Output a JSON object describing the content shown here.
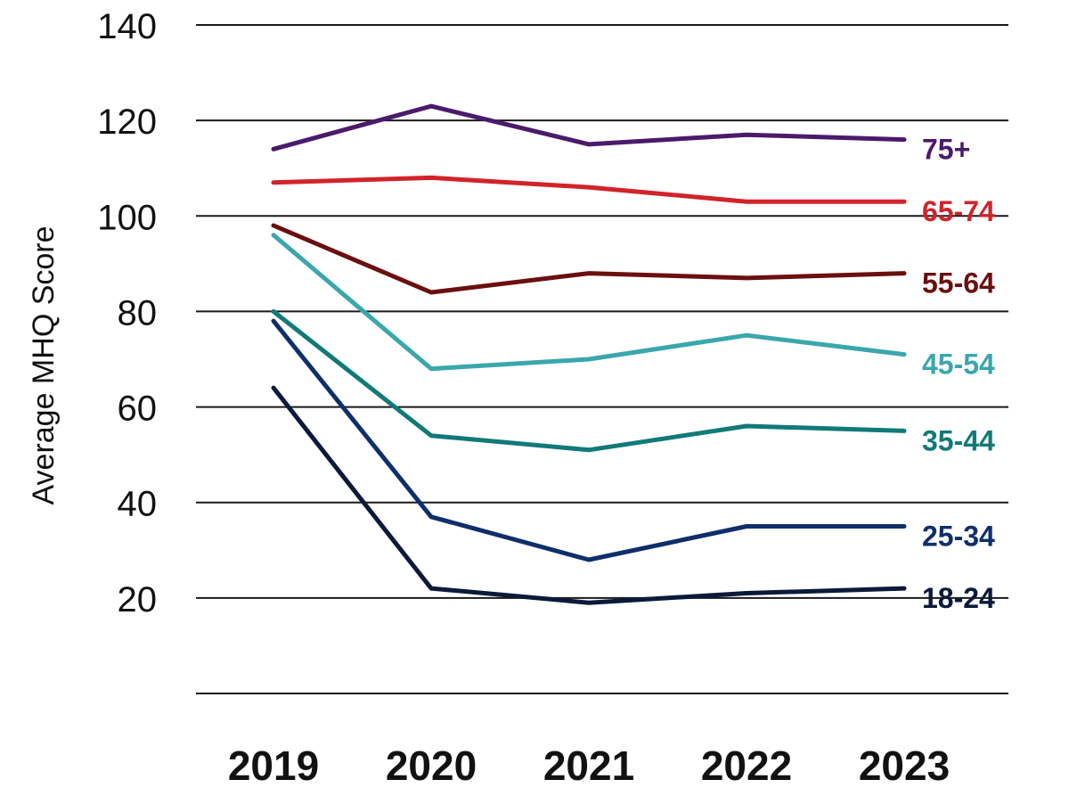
{
  "chart_data": {
    "type": "line",
    "title": "",
    "xlabel": "",
    "ylabel": "Average MHQ Score",
    "x": [
      "2019",
      "2020",
      "2021",
      "2022",
      "2023"
    ],
    "y_ticks": [
      20,
      40,
      60,
      80,
      100,
      120,
      140
    ],
    "ylim": [
      0,
      140
    ],
    "grid": true,
    "legend": "direct labels at line ends",
    "series": [
      {
        "name": "75+",
        "color": "#4b1a6b",
        "values": [
          114,
          123,
          115,
          117,
          116
        ]
      },
      {
        "name": "65-74",
        "color": "#d2232a",
        "values": [
          107,
          108,
          106,
          103,
          103
        ]
      },
      {
        "name": "55-64",
        "color": "#6b0f0f",
        "values": [
          98,
          84,
          88,
          87,
          88
        ]
      },
      {
        "name": "45-54",
        "color": "#3aa7ad",
        "values": [
          96,
          68,
          70,
          75,
          71
        ]
      },
      {
        "name": "35-44",
        "color": "#117a78",
        "values": [
          80,
          54,
          51,
          56,
          55
        ]
      },
      {
        "name": "25-34",
        "color": "#0f2f6b",
        "values": [
          78,
          37,
          28,
          35,
          35
        ]
      },
      {
        "name": "18-24",
        "color": "#0b1a3a",
        "values": [
          64,
          22,
          19,
          21,
          22
        ]
      }
    ]
  }
}
